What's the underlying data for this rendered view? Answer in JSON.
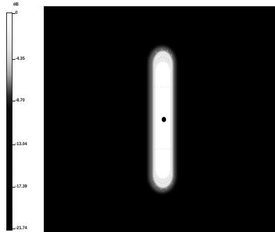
{
  "colorbar": {
    "unit": "dB",
    "ticks": [
      "0",
      "-4.35",
      "-8.70",
      "-13.04",
      "-17.39",
      "-21.74"
    ]
  },
  "map": {
    "background": "#000000",
    "spot_color": "#ffffff",
    "focus_color": "#000000"
  }
}
